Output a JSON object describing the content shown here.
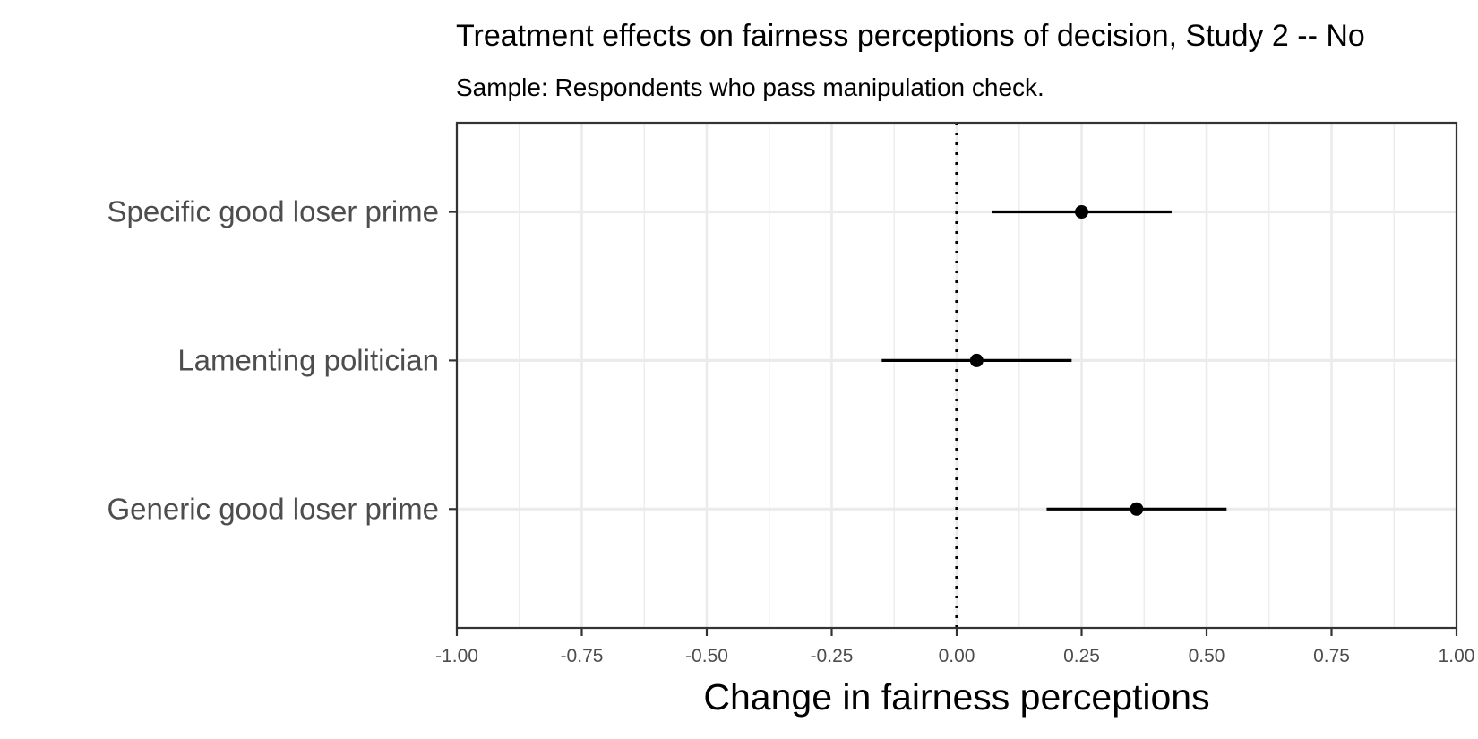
{
  "chart_data": {
    "type": "forest",
    "title": "Treatment effects on fairness perceptions of decision, Study 2 -- No",
    "subtitle": "Sample: Respondents who pass manipulation check.",
    "xlabel": "Change in fairness perceptions",
    "ylabel": "",
    "xlim": [
      -1.0,
      1.0
    ],
    "x_ticks": [
      -1.0,
      -0.75,
      -0.5,
      -0.25,
      0.0,
      0.25,
      0.5,
      0.75,
      1.0
    ],
    "x_tick_labels": [
      "-1.00",
      "-0.75",
      "-0.50",
      "-0.25",
      "0.00",
      "0.25",
      "0.50",
      "0.75",
      "1.00"
    ],
    "reference_line": {
      "x": 0.0,
      "style": "dotted"
    },
    "grid": true,
    "categories": [
      "Specific good loser prime",
      "Lamenting politician",
      "Generic good loser prime"
    ],
    "estimates": [
      {
        "label": "Specific good loser prime",
        "estimate": 0.25,
        "lower": 0.07,
        "upper": 0.43
      },
      {
        "label": "Lamenting politician",
        "estimate": 0.04,
        "lower": -0.15,
        "upper": 0.23
      },
      {
        "label": "Generic good loser prime",
        "estimate": 0.36,
        "lower": 0.18,
        "upper": 0.54
      }
    ],
    "colors": {
      "point": "#000000",
      "grid": "#ebebeb",
      "axis_text": "#4d4d4d",
      "panel_border": "#333333"
    }
  }
}
